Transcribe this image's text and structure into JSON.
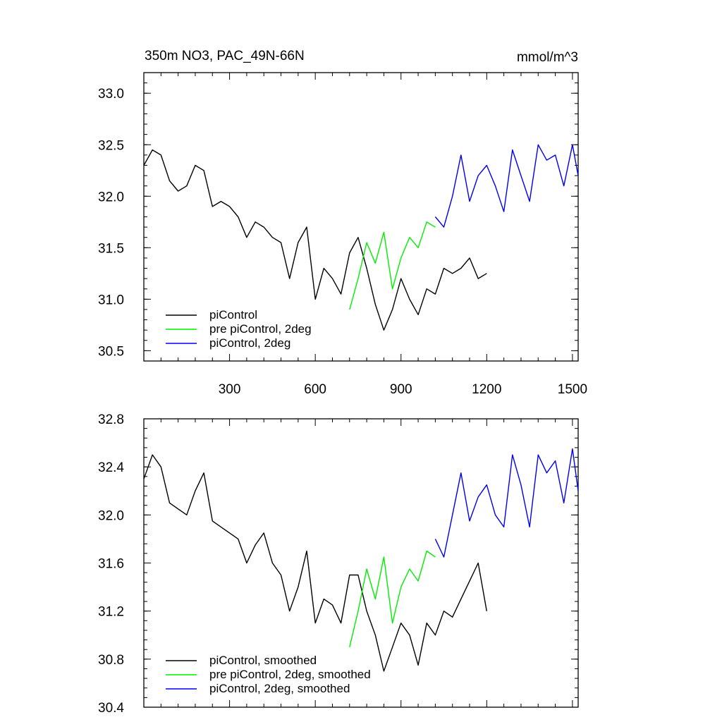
{
  "chart_data": [
    {
      "type": "line",
      "title": "350m NO3, PAC_49N-66N",
      "units": "mmol/m^3",
      "xlim": [
        0,
        1520
      ],
      "ylim": [
        30.4,
        33.2
      ],
      "x_ticks": [
        300,
        600,
        900,
        1200,
        1500
      ],
      "y_ticks": [
        30.5,
        31.0,
        31.5,
        32.0,
        32.5,
        33.0
      ],
      "y_tick_labels": [
        "30.5",
        "31.0",
        "31.5",
        "32.0",
        "32.5",
        "33.0"
      ],
      "legend": "bottom-left",
      "series": [
        {
          "name": "piControl",
          "color": "#000000",
          "x": [
            0,
            30,
            60,
            90,
            120,
            150,
            180,
            210,
            240,
            270,
            300,
            330,
            360,
            390,
            420,
            450,
            480,
            510,
            540,
            570,
            600,
            630,
            660,
            690,
            720,
            750,
            780,
            810,
            840,
            870,
            900,
            930,
            960,
            990,
            1020,
            1050,
            1080,
            1110,
            1140,
            1170,
            1200
          ],
          "y": [
            32.3,
            32.45,
            32.4,
            32.15,
            32.05,
            32.1,
            32.3,
            32.25,
            31.9,
            31.95,
            31.9,
            31.8,
            31.6,
            31.75,
            31.7,
            31.6,
            31.55,
            31.2,
            31.55,
            31.7,
            31.0,
            31.3,
            31.2,
            31.05,
            31.45,
            31.6,
            31.3,
            30.95,
            30.7,
            30.9,
            31.2,
            31.0,
            30.85,
            31.1,
            31.05,
            31.3,
            31.25,
            31.3,
            31.4,
            31.2,
            31.25
          ]
        },
        {
          "name": "pre piControl, 2deg",
          "color": "#00ee00",
          "x": [
            720,
            750,
            780,
            810,
            840,
            870,
            900,
            930,
            960,
            990,
            1020
          ],
          "y": [
            30.9,
            31.2,
            31.55,
            31.35,
            31.65,
            31.1,
            31.4,
            31.6,
            31.5,
            31.75,
            31.7
          ]
        },
        {
          "name": "piControl, 2deg",
          "color": "#0000ee",
          "x": [
            1020,
            1050,
            1080,
            1110,
            1140,
            1170,
            1200,
            1230,
            1260,
            1290,
            1320,
            1350,
            1380,
            1410,
            1440,
            1470,
            1500,
            1520
          ],
          "y": [
            31.8,
            31.7,
            32.0,
            32.4,
            31.95,
            32.2,
            32.3,
            32.1,
            31.85,
            32.45,
            32.2,
            31.95,
            32.5,
            32.35,
            32.4,
            32.1,
            32.5,
            32.2
          ]
        }
      ]
    },
    {
      "type": "line",
      "xlim": [
        0,
        1520
      ],
      "ylim": [
        30.4,
        32.8
      ],
      "x_ticks": [
        300,
        600,
        900,
        1200,
        1500
      ],
      "y_ticks": [
        30.4,
        30.8,
        31.2,
        31.6,
        32.0,
        32.4,
        32.8
      ],
      "y_tick_labels": [
        "30.4",
        "30.8",
        "31.2",
        "31.6",
        "32.0",
        "32.4",
        "32.8"
      ],
      "legend": "bottom-left",
      "series": [
        {
          "name": "piControl, smoothed",
          "color": "#000000",
          "x": [
            0,
            30,
            60,
            90,
            120,
            150,
            180,
            210,
            240,
            270,
            300,
            330,
            360,
            390,
            420,
            450,
            480,
            510,
            540,
            570,
            600,
            630,
            660,
            690,
            720,
            750,
            780,
            810,
            840,
            870,
            900,
            930,
            960,
            990,
            1020,
            1050,
            1080,
            1110,
            1140,
            1170,
            1200
          ],
          "y": [
            32.3,
            32.5,
            32.4,
            32.1,
            32.05,
            32.0,
            32.2,
            32.35,
            31.95,
            31.9,
            31.85,
            31.8,
            31.6,
            31.75,
            31.85,
            31.6,
            31.5,
            31.2,
            31.4,
            31.7,
            31.1,
            31.3,
            31.25,
            31.1,
            31.5,
            31.5,
            31.2,
            31.0,
            30.7,
            30.9,
            31.1,
            31.0,
            30.75,
            31.1,
            31.0,
            31.2,
            31.15,
            31.3,
            31.45,
            31.6,
            31.2
          ]
        },
        {
          "name": "pre piControl, 2deg, smoothed",
          "color": "#00ee00",
          "x": [
            720,
            750,
            780,
            810,
            840,
            870,
            900,
            930,
            960,
            990,
            1020
          ],
          "y": [
            30.9,
            31.2,
            31.55,
            31.3,
            31.65,
            31.1,
            31.4,
            31.55,
            31.45,
            31.7,
            31.65
          ]
        },
        {
          "name": "piControl, 2deg, smoothed",
          "color": "#0000ee",
          "x": [
            1020,
            1050,
            1080,
            1110,
            1140,
            1170,
            1200,
            1230,
            1260,
            1290,
            1320,
            1350,
            1380,
            1410,
            1440,
            1470,
            1500,
            1520
          ],
          "y": [
            31.8,
            31.65,
            32.0,
            32.35,
            31.95,
            32.15,
            32.25,
            32.0,
            31.9,
            32.5,
            32.25,
            31.9,
            32.5,
            32.35,
            32.45,
            32.1,
            32.55,
            32.2
          ]
        }
      ]
    }
  ]
}
